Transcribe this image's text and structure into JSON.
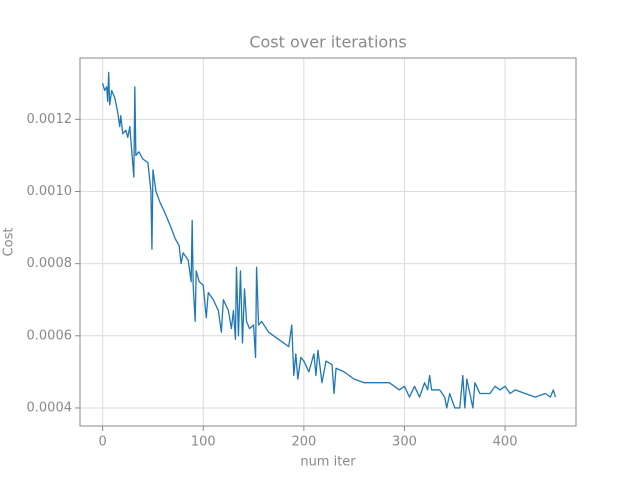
{
  "chart_data": {
    "type": "line",
    "title": "Cost over iterations",
    "xlabel": "num iter",
    "ylabel": "Cost",
    "xlim": [
      -22.5,
      470.5
    ],
    "xticks": [
      0,
      100,
      200,
      300,
      400
    ],
    "ylim": [
      0.00035,
      0.00137
    ],
    "yticks": [
      0.0004,
      0.0006,
      0.0008,
      {
        "value": 0.001,
        "label": "0.0010"
      },
      {
        "value": 0.0012,
        "label": "0.0012"
      }
    ],
    "grid": true,
    "x": [
      0,
      2,
      4,
      5,
      6,
      7,
      9,
      12,
      15,
      17,
      18,
      20,
      23,
      25,
      27,
      29,
      31,
      32,
      33,
      36,
      40,
      45,
      48,
      49,
      50,
      53,
      57,
      62,
      68,
      72,
      76,
      78,
      80,
      85,
      88,
      89,
      90,
      92,
      93,
      96,
      100,
      103,
      105,
      110,
      115,
      118,
      120,
      125,
      128,
      130,
      132,
      133,
      135,
      137,
      139,
      141,
      143,
      146,
      150,
      152,
      153,
      155,
      158,
      165,
      175,
      185,
      188,
      190,
      192,
      194,
      197,
      200,
      205,
      210,
      212,
      214,
      218,
      222,
      228,
      230,
      232,
      240,
      250,
      260,
      270,
      285,
      290,
      295,
      300,
      305,
      310,
      315,
      320,
      323,
      325,
      327,
      335,
      340,
      342,
      345,
      350,
      355,
      358,
      360,
      362,
      365,
      368,
      370,
      375,
      385,
      390,
      395,
      400,
      405,
      410,
      420,
      430,
      440,
      445,
      448,
      450
    ],
    "series": [
      {
        "name": "Cost",
        "color": "#1f77b4",
        "values": [
          0.0013,
          0.00128,
          0.00129,
          0.00125,
          0.00133,
          0.00124,
          0.00128,
          0.00126,
          0.00122,
          0.00118,
          0.00121,
          0.00116,
          0.00117,
          0.00115,
          0.00118,
          0.00111,
          0.00104,
          0.00129,
          0.0011,
          0.00111,
          0.00109,
          0.00108,
          0.001,
          0.00084,
          0.00106,
          0.001,
          0.00097,
          0.00094,
          0.0009,
          0.00087,
          0.00085,
          0.0008,
          0.00083,
          0.00081,
          0.00075,
          0.00092,
          0.00074,
          0.00064,
          0.00078,
          0.00075,
          0.00074,
          0.00065,
          0.00072,
          0.0007,
          0.00067,
          0.00061,
          0.0007,
          0.00067,
          0.00062,
          0.00067,
          0.00059,
          0.00079,
          0.0006,
          0.00078,
          0.00058,
          0.00073,
          0.00064,
          0.00062,
          0.00063,
          0.00054,
          0.00079,
          0.00063,
          0.00064,
          0.00061,
          0.00059,
          0.00057,
          0.00063,
          0.00049,
          0.00055,
          0.00048,
          0.00054,
          0.00053,
          0.0005,
          0.00055,
          0.00049,
          0.00056,
          0.00047,
          0.00053,
          0.00052,
          0.00044,
          0.00051,
          0.0005,
          0.00048,
          0.00047,
          0.00047,
          0.00047,
          0.00046,
          0.00045,
          0.00046,
          0.00043,
          0.00046,
          0.00043,
          0.00047,
          0.00045,
          0.00049,
          0.00045,
          0.00045,
          0.00043,
          0.0004,
          0.00044,
          0.0004,
          0.0004,
          0.00049,
          0.0004,
          0.00048,
          0.00044,
          0.0004,
          0.00047,
          0.00044,
          0.00044,
          0.00046,
          0.00045,
          0.00046,
          0.00044,
          0.00045,
          0.00044,
          0.00043,
          0.00044,
          0.00043,
          0.00045,
          0.00043
        ]
      }
    ]
  }
}
